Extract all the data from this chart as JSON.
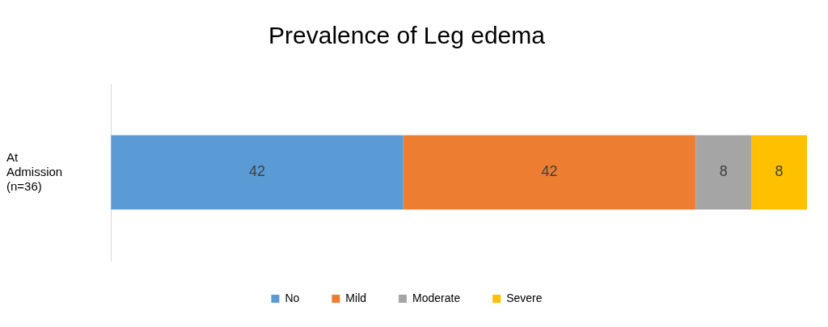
{
  "chart_data": {
    "type": "bar",
    "orientation": "horizontal",
    "stacked": true,
    "title": "Prevalence of Leg edema",
    "categories": [
      "At Admission (n=36)"
    ],
    "series": [
      {
        "name": "No",
        "color": "#5b9bd5",
        "values": [
          42
        ]
      },
      {
        "name": "Mild",
        "color": "#ed7d31",
        "values": [
          42
        ]
      },
      {
        "name": "Moderate",
        "color": "#a5a5a5",
        "values": [
          8
        ]
      },
      {
        "name": "Severe",
        "color": "#ffc000",
        "values": [
          8
        ]
      }
    ],
    "data_labels": true,
    "legend": "bottom",
    "grid": false
  }
}
